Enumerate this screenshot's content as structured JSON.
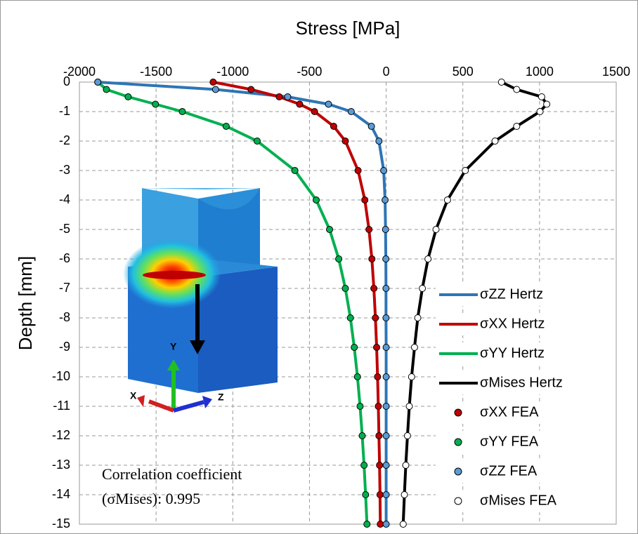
{
  "chart_data": {
    "type": "line",
    "title": "Stress [MPa]",
    "y_label": "Depth [mm]",
    "annotation": [
      "Correlation coefficient",
      "(σMises): 0.995"
    ],
    "inset_axis_labels": [
      "X",
      "Y",
      "Z"
    ],
    "xlim": [
      -2000,
      1500
    ],
    "xticks": [
      -2000,
      -1500,
      -1000,
      -500,
      0,
      500,
      1000,
      1500
    ],
    "ylim": [
      -15,
      0
    ],
    "yticks": [
      0,
      -1,
      -2,
      -3,
      -4,
      -5,
      -6,
      -7,
      -8,
      -9,
      -10,
      -11,
      -12,
      -13,
      -14,
      -15
    ],
    "grid": true,
    "legend": "lower right",
    "y": [
      0,
      -0.25,
      -0.5,
      -0.75,
      -1,
      -1.5,
      -2,
      -3,
      -4,
      -5,
      -6,
      -7,
      -8,
      -9,
      -10,
      -11,
      -12,
      -13,
      -14,
      -15
    ],
    "series": [
      {
        "name": "σZZ Hertz",
        "color": "#2e75b6",
        "style": "line",
        "x": [
          -1880,
          -1112,
          -642,
          -376,
          -228,
          -96,
          -47,
          -16,
          -7,
          -4,
          -2,
          -1,
          -1,
          0,
          0,
          0,
          0,
          0,
          0,
          0
        ]
      },
      {
        "name": "σXX Hertz",
        "color": "#c00000",
        "style": "line",
        "x": [
          -1128,
          -881,
          -697,
          -564,
          -467,
          -342,
          -266,
          -183,
          -139,
          -112,
          -93,
          -80,
          -70,
          -62,
          -56,
          -51,
          -47,
          -43,
          -40,
          -38
        ]
      },
      {
        "name": "σYY Hertz",
        "color": "#00b050",
        "style": "line",
        "x": [
          -1880,
          -1824,
          -1682,
          -1504,
          -1329,
          -1043,
          -841,
          -595,
          -456,
          -369,
          -309,
          -266,
          -233,
          -208,
          -187,
          -170,
          -156,
          -144,
          -134,
          -125
        ]
      },
      {
        "name": "σMises Hertz",
        "color": "#000000",
        "style": "line",
        "x": [
          752,
          851,
          1014,
          1047,
          1003,
          851,
          710,
          516,
          400,
          325,
          273,
          236,
          206,
          185,
          166,
          151,
          139,
          128,
          119,
          111
        ]
      },
      {
        "name": "σXX FEA",
        "color": "#c00000",
        "style": "points",
        "x": [
          -1128,
          -881,
          -697,
          -564,
          -467,
          -342,
          -266,
          -183,
          -139,
          -112,
          -93,
          -80,
          -70,
          -62,
          -56,
          -51,
          -47,
          -43,
          -40,
          -38
        ]
      },
      {
        "name": "σYY FEA",
        "color": "#00b050",
        "style": "points",
        "x": [
          -1880,
          -1824,
          -1682,
          -1504,
          -1329,
          -1043,
          -841,
          -595,
          -456,
          -369,
          -309,
          -266,
          -233,
          -208,
          -187,
          -170,
          -156,
          -144,
          -134,
          -125
        ]
      },
      {
        "name": "σZZ FEA",
        "color": "#5b9bd5",
        "style": "points",
        "x": [
          -1880,
          -1112,
          -642,
          -376,
          -228,
          -96,
          -47,
          -16,
          -7,
          -4,
          -2,
          -1,
          -1,
          0,
          0,
          0,
          0,
          0,
          0,
          0
        ]
      },
      {
        "name": "σMises FEA",
        "color": "#ffffff",
        "style": "points",
        "x": [
          752,
          851,
          1014,
          1047,
          1003,
          851,
          710,
          516,
          400,
          325,
          273,
          236,
          206,
          185,
          166,
          151,
          139,
          128,
          119,
          111
        ]
      }
    ]
  }
}
